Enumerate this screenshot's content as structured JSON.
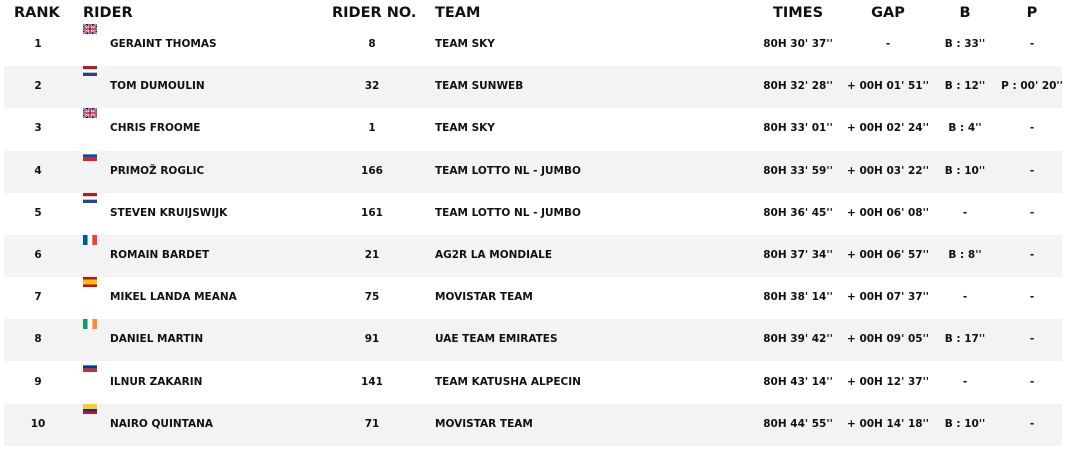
{
  "headers": {
    "rank": "RANK",
    "rider": "RIDER",
    "rider_no": "RIDER NO.",
    "team": "TEAM",
    "times": "TIMES",
    "gap": "GAP",
    "b": "B",
    "p": "P"
  },
  "rows": [
    {
      "rank": "1",
      "flag": "gb",
      "rider": "GERAINT THOMAS",
      "no": "8",
      "team": "TEAM SKY",
      "time": "80H 30' 37''",
      "gap": "-",
      "b": "B : 33''",
      "p": "-"
    },
    {
      "rank": "2",
      "flag": "nl",
      "rider": "TOM DUMOULIN",
      "no": "32",
      "team": "TEAM SUNWEB",
      "time": "80H 32' 28''",
      "gap": "+ 00H 01' 51''",
      "b": "B : 12''",
      "p": "P : 00' 20''"
    },
    {
      "rank": "3",
      "flag": "gb",
      "rider": "CHRIS FROOME",
      "no": "1",
      "team": "TEAM SKY",
      "time": "80H 33' 01''",
      "gap": "+ 00H 02' 24''",
      "b": "B : 4''",
      "p": "-"
    },
    {
      "rank": "4",
      "flag": "si",
      "rider": "PRIMOŽ ROGLIC",
      "no": "166",
      "team": "TEAM LOTTO NL - JUMBO",
      "time": "80H 33' 59''",
      "gap": "+ 00H 03' 22''",
      "b": "B : 10''",
      "p": "-"
    },
    {
      "rank": "5",
      "flag": "nl",
      "rider": "STEVEN KRUIJSWIJK",
      "no": "161",
      "team": "TEAM LOTTO NL - JUMBO",
      "time": "80H 36' 45''",
      "gap": "+ 00H 06' 08''",
      "b": "-",
      "p": "-"
    },
    {
      "rank": "6",
      "flag": "fr",
      "rider": "ROMAIN BARDET",
      "no": "21",
      "team": "AG2R LA MONDIALE",
      "time": "80H 37' 34''",
      "gap": "+ 00H 06' 57''",
      "b": "B : 8''",
      "p": "-"
    },
    {
      "rank": "7",
      "flag": "es",
      "rider": "MIKEL LANDA MEANA",
      "no": "75",
      "team": "MOVISTAR TEAM",
      "time": "80H 38' 14''",
      "gap": "+ 00H 07' 37''",
      "b": "-",
      "p": "-"
    },
    {
      "rank": "8",
      "flag": "ie",
      "rider": "DANIEL MARTIN",
      "no": "91",
      "team": "UAE TEAM EMIRATES",
      "time": "80H 39' 42''",
      "gap": "+ 00H 09' 05''",
      "b": "B : 17''",
      "p": "-"
    },
    {
      "rank": "9",
      "flag": "ru",
      "rider": "ILNUR ZAKARIN",
      "no": "141",
      "team": "TEAM KATUSHA ALPECIN",
      "time": "80H 43' 14''",
      "gap": "+ 00H 12' 37''",
      "b": "-",
      "p": "-"
    },
    {
      "rank": "10",
      "flag": "co",
      "rider": "NAIRO QUINTANA",
      "no": "71",
      "team": "MOVISTAR TEAM",
      "time": "80H 44' 55''",
      "gap": "+ 00H 14' 18''",
      "b": "B : 10''",
      "p": "-"
    }
  ]
}
